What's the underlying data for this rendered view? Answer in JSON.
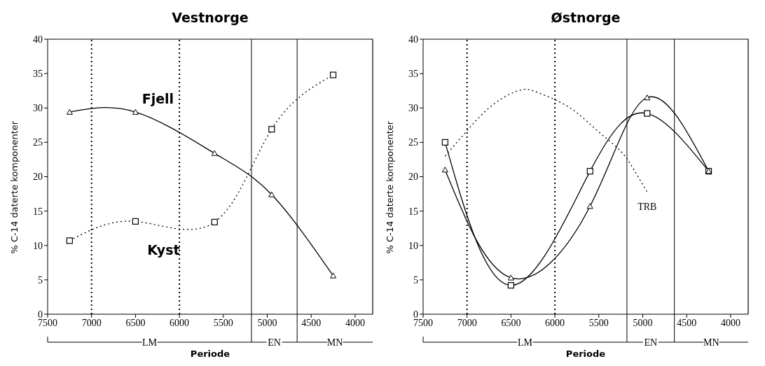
{
  "chart_data": [
    {
      "type": "line",
      "title": "Vestnorge",
      "xlabel": "Periode",
      "ylabel": "% C-14 daterte komponenter",
      "xlim": [
        7500,
        3800
      ],
      "xticks": [
        7500,
        7000,
        6500,
        6000,
        5500,
        5000,
        4500,
        4000
      ],
      "ylim": [
        0,
        40
      ],
      "yticks": [
        0,
        5,
        10,
        15,
        20,
        25,
        30,
        35,
        40
      ],
      "grid": false,
      "legend": false,
      "series": [
        {
          "name": "Fjell",
          "color": "#000000",
          "marker": "triangle",
          "line_style": "solid",
          "x": [
            7250,
            6500,
            5600,
            4950,
            4250
          ],
          "values": [
            29.4,
            29.4,
            23.4,
            17.4,
            5.6
          ]
        },
        {
          "name": "Kyst",
          "color": "#000000",
          "marker": "square",
          "line_style": "dotted",
          "x": [
            7250,
            6500,
            5600,
            4950,
            4250
          ],
          "values": [
            10.7,
            13.5,
            13.4,
            26.9,
            34.8
          ]
        }
      ],
      "ref_lines": [
        {
          "axis": "x",
          "value": 7000,
          "line_style": "dotted",
          "color": "#000000"
        },
        {
          "axis": "x",
          "value": 6000,
          "line_style": "dotted",
          "color": "#000000"
        },
        {
          "axis": "x",
          "value": 5180,
          "line_style": "solid",
          "color": "#000000"
        },
        {
          "axis": "x",
          "value": 4660,
          "line_style": "solid",
          "color": "#000000"
        }
      ],
      "annotations": [
        "LM",
        "EN",
        "MN"
      ]
    },
    {
      "type": "line",
      "title": "Østnorge",
      "xlabel": "Periode",
      "ylabel": "% C-14 daterte komponenter",
      "xlim": [
        7500,
        3800
      ],
      "xticks": [
        7500,
        7000,
        6500,
        6000,
        5500,
        5000,
        4500,
        4000
      ],
      "ylim": [
        0,
        40
      ],
      "yticks": [
        0,
        5,
        10,
        15,
        20,
        25,
        30,
        35,
        40
      ],
      "grid": false,
      "legend": false,
      "series": [
        {
          "color": "#000000",
          "marker": "square",
          "line_style": "solid",
          "x": [
            7250,
            6500,
            5600,
            4950,
            4250
          ],
          "values": [
            25.0,
            4.2,
            20.8,
            29.2,
            20.8
          ]
        },
        {
          "color": "#000000",
          "marker": "triangle",
          "line_style": "solid",
          "x": [
            7250,
            6500,
            5600,
            4950,
            4250
          ],
          "values": [
            21.0,
            5.3,
            15.7,
            31.5,
            20.8
          ]
        },
        {
          "name": "TRB",
          "color": "#000000",
          "marker": "none",
          "line_style": "dotted",
          "x": [
            7250,
            7000,
            6750,
            6500,
            6350,
            6250,
            6000,
            5750,
            5500,
            5250,
            5100,
            4950
          ],
          "values": [
            23.0,
            26.7,
            30.0,
            32.1,
            32.7,
            32.5,
            31.2,
            29.3,
            26.5,
            23.7,
            21.0,
            17.8
          ]
        }
      ],
      "ref_lines": [
        {
          "axis": "x",
          "value": 7000,
          "line_style": "dotted",
          "color": "#000000"
        },
        {
          "axis": "x",
          "value": 6000,
          "line_style": "dotted",
          "color": "#000000"
        },
        {
          "axis": "x",
          "value": 5180,
          "line_style": "solid",
          "color": "#000000"
        },
        {
          "axis": "x",
          "value": 4640,
          "line_style": "solid",
          "color": "#000000"
        }
      ],
      "annotations": [
        "LM",
        "EN",
        "MN"
      ]
    }
  ]
}
